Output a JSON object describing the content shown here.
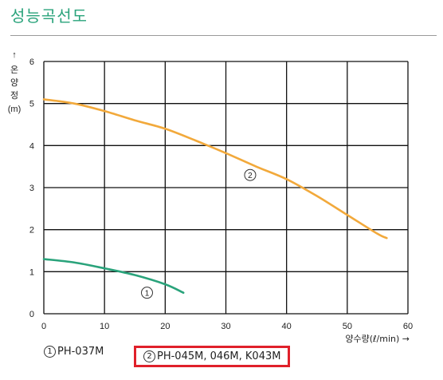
{
  "header": {
    "title": "성능곡선도"
  },
  "chart_data": {
    "type": "line",
    "xlabel": "양수량(ℓ/min) →",
    "ylabel_arrow": "↑",
    "ylabel_chars": [
      "온",
      "양",
      "정"
    ],
    "yunit": "(m)",
    "xlim": [
      0,
      60
    ],
    "ylim": [
      0,
      6
    ],
    "xticks": [
      "0",
      "10",
      "20",
      "30",
      "40",
      "50",
      "60"
    ],
    "yticks": [
      "0",
      "1",
      "2",
      "3",
      "4",
      "5",
      "6"
    ],
    "grid": true,
    "series": [
      {
        "name": "PH-037M",
        "marker": "1",
        "color": "#2aa37b",
        "points": [
          [
            0,
            1.3
          ],
          [
            5,
            1.22
          ],
          [
            10,
            1.08
          ],
          [
            15,
            0.92
          ],
          [
            20,
            0.7
          ],
          [
            23,
            0.5
          ]
        ],
        "label_at": [
          17,
          0.5
        ]
      },
      {
        "name": "PH-045M, 046M, K043M",
        "marker": "2",
        "color": "#f2a93b",
        "points": [
          [
            0,
            5.1
          ],
          [
            5,
            5.0
          ],
          [
            10,
            4.82
          ],
          [
            15,
            4.6
          ],
          [
            20,
            4.4
          ],
          [
            25,
            4.12
          ],
          [
            30,
            3.82
          ],
          [
            35,
            3.5
          ],
          [
            40,
            3.2
          ],
          [
            45,
            2.8
          ],
          [
            50,
            2.35
          ],
          [
            55,
            1.9
          ],
          [
            56.5,
            1.8
          ]
        ],
        "label_at": [
          34,
          3.3
        ]
      }
    ]
  },
  "legend": {
    "item1": {
      "marker": "1",
      "label": "PH-037M"
    },
    "item2": {
      "marker": "2",
      "label": "PH-045M, 046M, K043M"
    }
  }
}
